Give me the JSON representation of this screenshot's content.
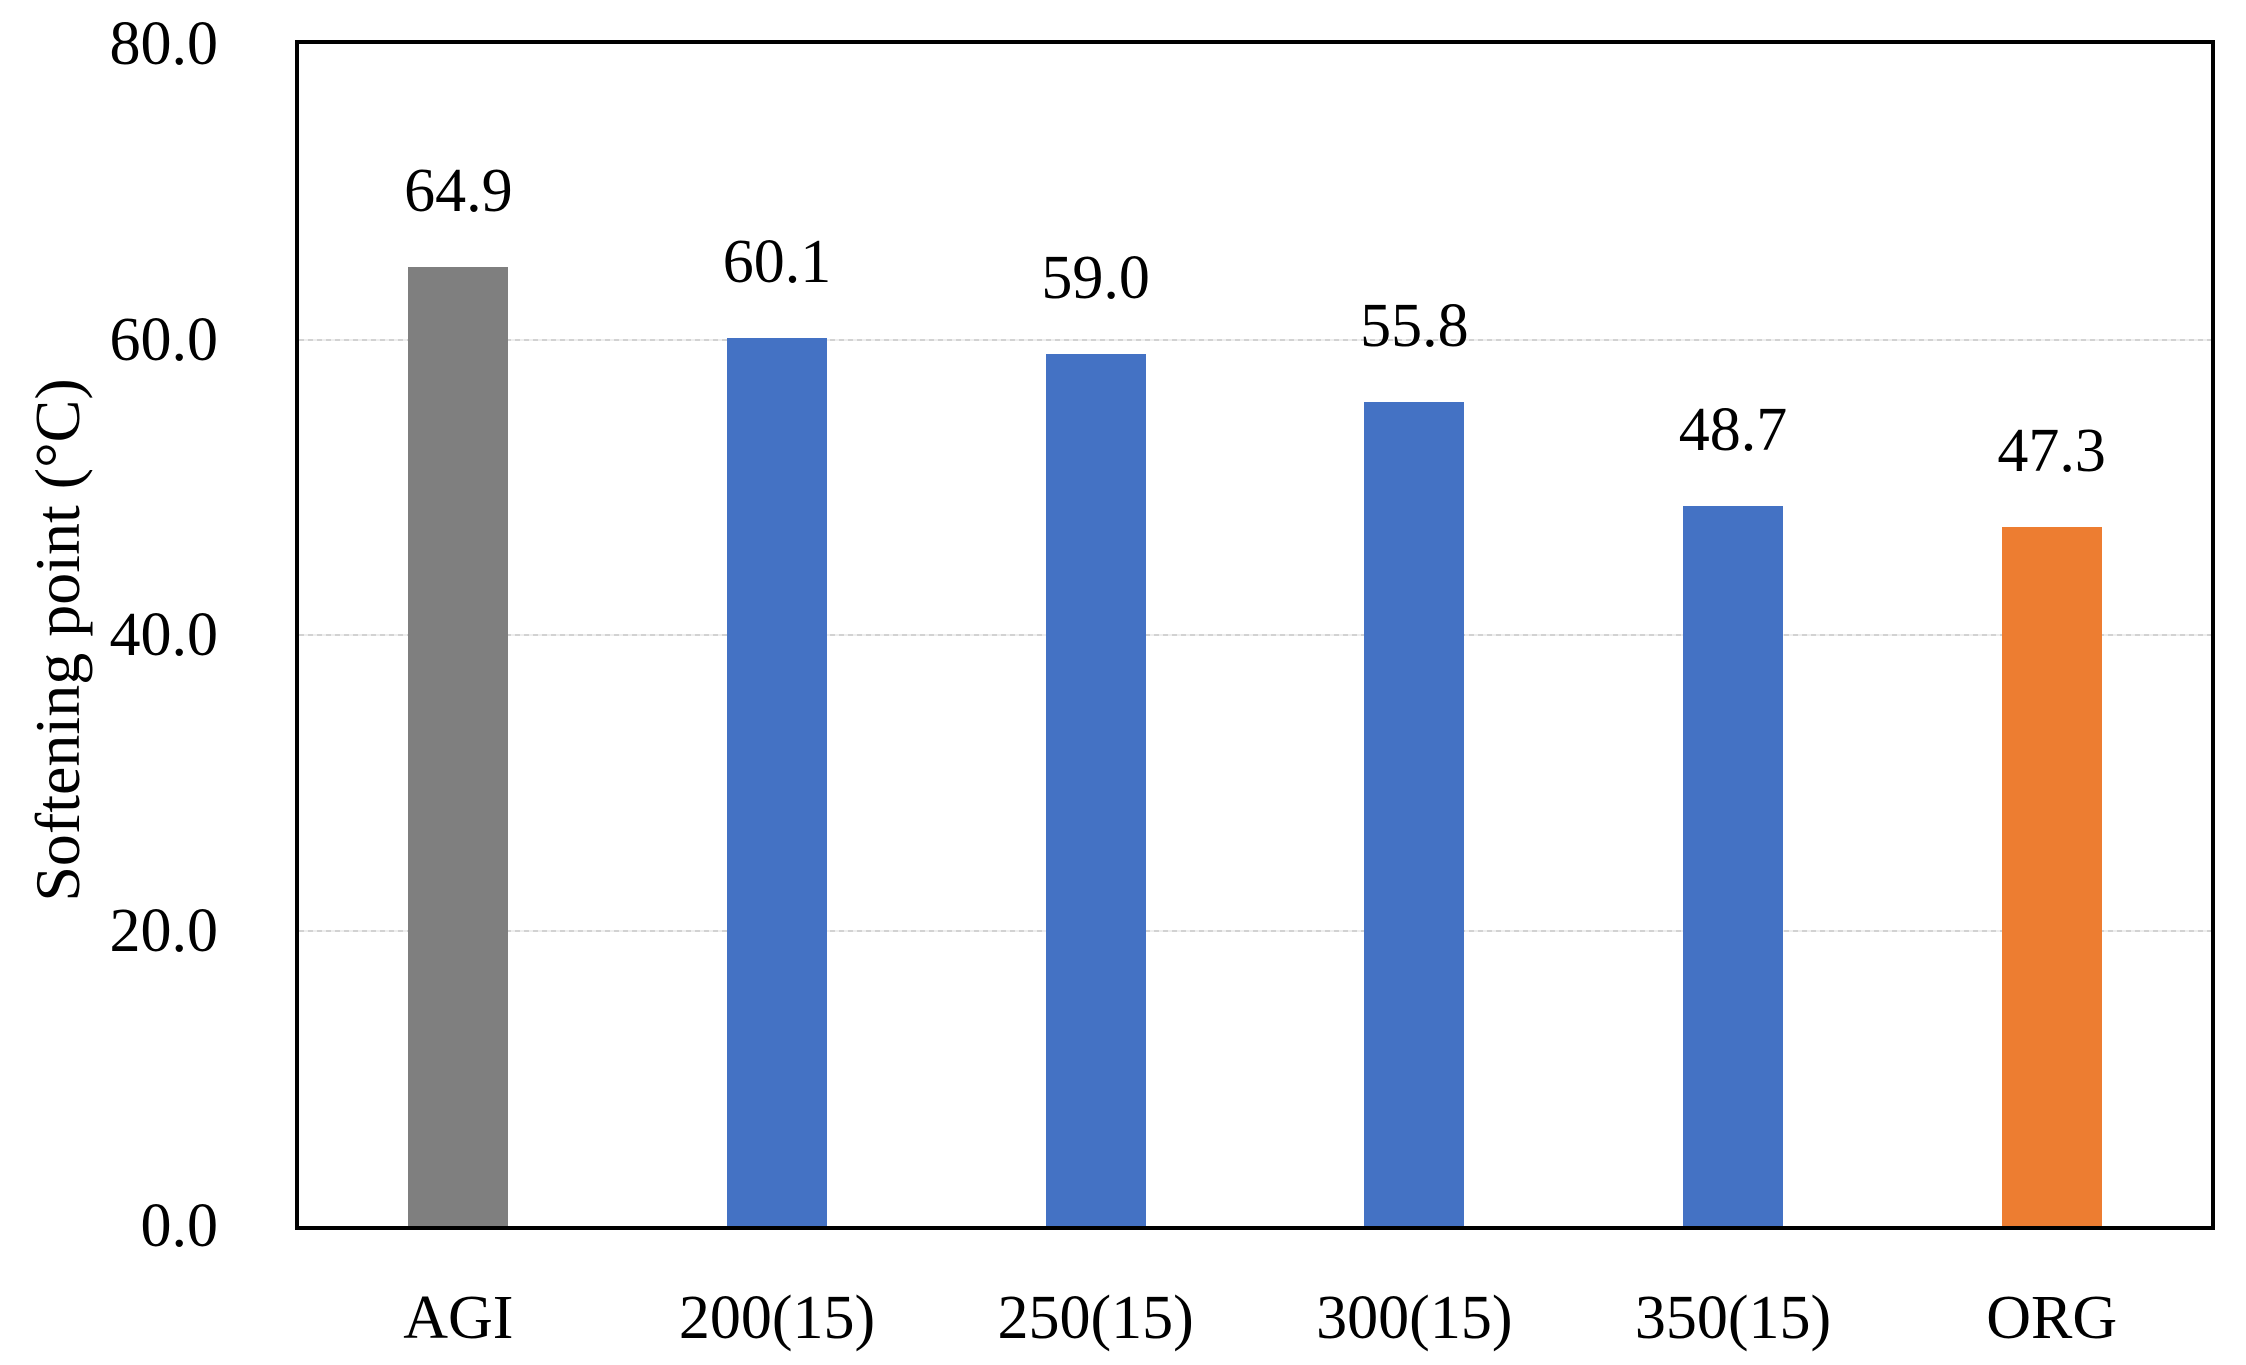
{
  "chart_data": {
    "type": "bar",
    "title": "",
    "xlabel": "",
    "ylabel": "Softening point (°C)",
    "categories": [
      "AGI",
      "200(15)",
      "250(15)",
      "300(15)",
      "350(15)",
      "ORG"
    ],
    "values": [
      64.9,
      60.1,
      59.0,
      55.8,
      48.7,
      47.3
    ],
    "value_labels": [
      "64.9",
      "60.1",
      "59.0",
      "55.8",
      "48.7",
      "47.3"
    ],
    "bar_colors": [
      "#7f7f7f",
      "#4472c4",
      "#4472c4",
      "#4472c4",
      "#4472c4",
      "#ed7d31"
    ],
    "bar_pattern_fill": [
      true,
      false,
      false,
      false,
      false,
      false
    ],
    "ylim": [
      0,
      80
    ],
    "yticks": [
      0.0,
      20.0,
      40.0,
      60.0,
      80.0
    ],
    "ytick_labels": [
      "0.0",
      "20.0",
      "40.0",
      "60.0",
      "80.0"
    ],
    "grid": true,
    "gridline_color": "#d9d9d9",
    "plot_border_color": "#000000",
    "legend": "none"
  }
}
